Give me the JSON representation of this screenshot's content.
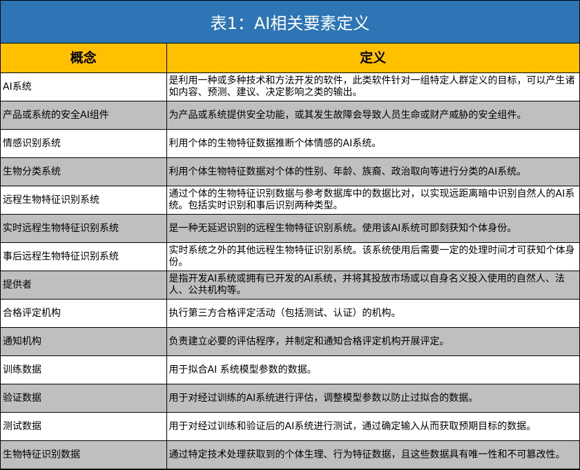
{
  "title": "表1：AI相关要素定义",
  "colors": {
    "title_bg": "#2E75B6",
    "header_bg": "#FFC000",
    "stripe_bg": "#BFBFBF"
  },
  "headers": {
    "concept": "概念",
    "definition": "定义"
  },
  "rows": [
    {
      "concept": "AI系统",
      "definition": "是利用一种或多种技术和方法开发的软件，此类软件针对一组特定人群定义的目标，可以产生诸如内容、预测、建议、决定影响之类的输出。"
    },
    {
      "concept": "产品或系统的安全AI组件",
      "definition": "为产品或系统提供安全功能，或其发生故障会导致人员生命或财产威胁的安全组件。"
    },
    {
      "concept": "情感识别系统",
      "definition": "利用个体的生物特征数据推断个体情感的AI系统。"
    },
    {
      "concept": "生物分类系统",
      "definition": "利用个体生物特征数据对个体的性别、年龄、族裔、政治取向等进行分类的AI系统。"
    },
    {
      "concept": "远程生物特征识别系统",
      "definition": "通过个体的生物特征识别数据与参考数据库中的数据比对，以实现远距离暗中识别自然人的AI系统。包括实时识别和事后识别两种类型。"
    },
    {
      "concept": "实时远程生物特征识别系统",
      "definition": "是一种无延迟识别的远程生物特征识别系统。使用该AI系统可即刻获知个体身份。"
    },
    {
      "concept": "事后远程生物特征识别系统",
      "definition": "实时系统之外的其他远程生物特征识别系统。该系统使用后需要一定的处理时间才可获知个体身份。"
    },
    {
      "concept": "提供者",
      "definition": "是指开发AI系统或拥有已开发的AI系统，并将其投放市场或以自身名义投入使用的自然人、法人、公共机构等。"
    },
    {
      "concept": "合格评定机构",
      "definition": "执行第三方合格评定活动（包括测试、认证）的机构。"
    },
    {
      "concept": "通知机构",
      "definition": "负责建立必要的评估程序，并制定和通知合格评定机构开展评定。"
    },
    {
      "concept": "训练数据",
      "definition": "用于拟合AI 系统模型参数的数据。"
    },
    {
      "concept": "验证数据",
      "definition": "用于对经过训练的AI系统进行评估，调整模型参数以防止过拟合的数据。"
    },
    {
      "concept": "测试数据",
      "definition": "用于对经过训练和验证后的AI系统进行测试，通过确定输入从而获取预期目标的数据。"
    },
    {
      "concept": "生物特征识别数据",
      "definition": "通过特定技术处理获取到的个体生理、行为特征数据，且这些数据具有唯一性和不可篡改性。"
    }
  ]
}
